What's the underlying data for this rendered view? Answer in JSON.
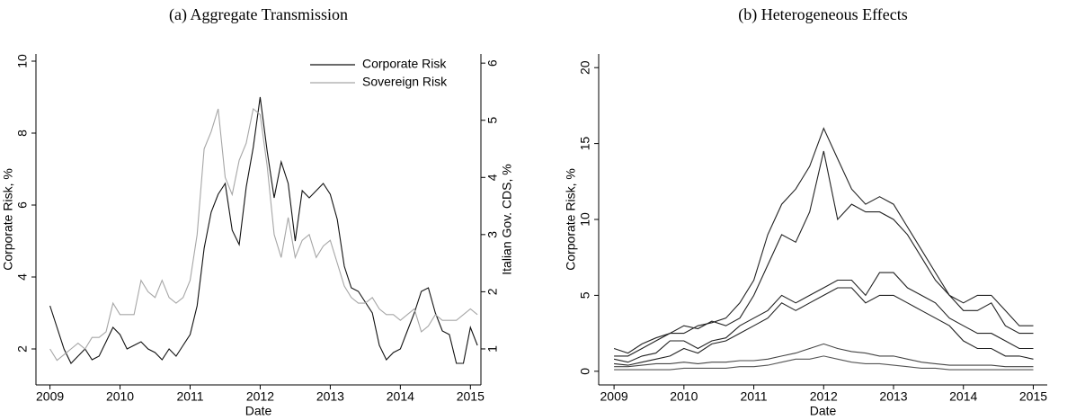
{
  "chart_data": [
    {
      "type": "line",
      "title": "(a) Aggregate Transmission",
      "x_label": "Date",
      "y_label": "Corporate Risk, %",
      "y2_label": "Italian Gov. CDS, %",
      "x": [
        2009.0,
        2009.1,
        2009.2,
        2009.3,
        2009.4,
        2009.5,
        2009.6,
        2009.7,
        2009.8,
        2009.9,
        2010.0,
        2010.1,
        2010.2,
        2010.3,
        2010.4,
        2010.5,
        2010.6,
        2010.7,
        2010.8,
        2010.9,
        2011.0,
        2011.1,
        2011.2,
        2011.3,
        2011.4,
        2011.5,
        2011.6,
        2011.7,
        2011.8,
        2011.9,
        2012.0,
        2012.1,
        2012.2,
        2012.3,
        2012.4,
        2012.5,
        2012.6,
        2012.7,
        2012.8,
        2012.9,
        2013.0,
        2013.1,
        2013.2,
        2013.3,
        2013.4,
        2013.5,
        2013.6,
        2013.7,
        2013.8,
        2013.9,
        2014.0,
        2014.1,
        2014.2,
        2014.3,
        2014.4,
        2014.5,
        2014.6,
        2014.7,
        2014.8,
        2014.9,
        2015.0,
        2015.1
      ],
      "series": [
        {
          "name": "Corporate Risk",
          "color": "#111111",
          "values": [
            3.2,
            2.6,
            2.0,
            1.6,
            1.8,
            2.0,
            1.7,
            1.8,
            2.2,
            2.6,
            2.4,
            2.0,
            2.1,
            2.2,
            2.0,
            1.9,
            1.7,
            2.0,
            1.8,
            2.1,
            2.4,
            3.2,
            4.8,
            5.8,
            6.3,
            6.6,
            5.3,
            4.9,
            6.5,
            7.6,
            9.0,
            7.5,
            6.2,
            7.2,
            6.6,
            5.0,
            6.4,
            6.2,
            6.4,
            6.6,
            6.3,
            5.6,
            4.3,
            3.7,
            3.6,
            3.3,
            3.0,
            2.1,
            1.7,
            1.9,
            2.0,
            2.5,
            3.0,
            3.6,
            3.7,
            3.0,
            2.5,
            2.4,
            1.6,
            1.6,
            2.6,
            2.1
          ]
        },
        {
          "name": "Sovereign Risk",
          "color": "#a6a6a6",
          "axis": "y2",
          "values": [
            1.0,
            0.8,
            0.9,
            1.0,
            1.1,
            1.0,
            1.2,
            1.2,
            1.3,
            1.8,
            1.6,
            1.6,
            1.6,
            2.2,
            2.0,
            1.9,
            2.2,
            1.9,
            1.8,
            1.9,
            2.2,
            3.0,
            4.5,
            4.8,
            5.2,
            4.0,
            3.7,
            4.3,
            4.6,
            5.2,
            5.1,
            4.2,
            3.0,
            2.6,
            3.3,
            2.6,
            2.9,
            3.0,
            2.6,
            2.8,
            2.9,
            2.5,
            2.1,
            1.9,
            1.8,
            1.8,
            1.9,
            1.7,
            1.6,
            1.6,
            1.5,
            1.6,
            1.7,
            1.3,
            1.4,
            1.6,
            1.5,
            1.5,
            1.5,
            1.6,
            1.7,
            1.6
          ]
        }
      ],
      "xlim": [
        2008.8,
        2015.15
      ],
      "xticks": [
        2009,
        2010,
        2011,
        2012,
        2013,
        2014,
        2015
      ],
      "ylim": [
        1.0,
        10.2
      ],
      "yticks": [
        2,
        4,
        6,
        8,
        10
      ],
      "y2lim": [
        0.37,
        6.16
      ],
      "y2ticks": [
        1,
        2,
        3,
        4,
        5,
        6
      ],
      "legend": "upper right"
    },
    {
      "type": "line",
      "title": "(b) Heterogeneous Effects",
      "x_label": "Date",
      "y_label": "Corporate Risk, %",
      "x": [
        2009.0,
        2009.2,
        2009.4,
        2009.6,
        2009.8,
        2010.0,
        2010.2,
        2010.4,
        2010.6,
        2010.8,
        2011.0,
        2011.2,
        2011.4,
        2011.6,
        2011.8,
        2012.0,
        2012.2,
        2012.4,
        2012.6,
        2012.8,
        2013.0,
        2013.2,
        2013.4,
        2013.6,
        2013.8,
        2014.0,
        2014.2,
        2014.4,
        2014.6,
        2014.8,
        2015.0
      ],
      "series": [
        {
          "color": "#222222",
          "values": [
            1.0,
            1.0,
            1.5,
            2.0,
            2.5,
            2.5,
            3.0,
            3.2,
            3.5,
            4.5,
            6.0,
            9.0,
            11.0,
            12.0,
            13.5,
            16.0,
            14.0,
            12.0,
            11.0,
            11.5,
            11.0,
            9.5,
            8.0,
            6.5,
            5.0,
            4.5,
            5.0,
            5.0,
            4.0,
            3.0,
            3.0
          ]
        },
        {
          "color": "#222222",
          "values": [
            1.5,
            1.2,
            1.8,
            2.2,
            2.5,
            3.0,
            2.8,
            3.3,
            3.0,
            3.5,
            5.0,
            7.0,
            9.0,
            8.5,
            10.5,
            14.5,
            10.0,
            11.0,
            10.5,
            10.5,
            10.0,
            9.0,
            7.5,
            6.0,
            5.0,
            4.0,
            4.0,
            4.5,
            3.0,
            2.5,
            2.5
          ]
        },
        {
          "color": "#222222",
          "values": [
            0.8,
            0.6,
            1.0,
            1.2,
            2.0,
            2.0,
            1.5,
            2.0,
            2.2,
            3.0,
            3.5,
            4.0,
            5.0,
            4.5,
            5.0,
            5.5,
            6.0,
            6.0,
            5.0,
            6.5,
            6.5,
            5.5,
            5.0,
            4.5,
            3.5,
            3.0,
            2.5,
            2.5,
            2.0,
            1.5,
            1.5
          ]
        },
        {
          "color": "#222222",
          "values": [
            0.5,
            0.4,
            0.6,
            0.8,
            1.0,
            1.5,
            1.2,
            1.8,
            2.0,
            2.5,
            3.0,
            3.5,
            4.5,
            4.0,
            4.5,
            5.0,
            5.5,
            5.5,
            4.5,
            5.0,
            5.0,
            4.5,
            4.0,
            3.5,
            3.0,
            2.0,
            1.5,
            1.5,
            1.0,
            1.0,
            0.8
          ]
        },
        {
          "color": "#444444",
          "values": [
            0.3,
            0.3,
            0.4,
            0.5,
            0.5,
            0.6,
            0.5,
            0.6,
            0.6,
            0.7,
            0.7,
            0.8,
            1.0,
            1.2,
            1.5,
            1.8,
            1.5,
            1.3,
            1.2,
            1.0,
            1.0,
            0.8,
            0.6,
            0.5,
            0.4,
            0.4,
            0.4,
            0.4,
            0.3,
            0.3,
            0.3
          ]
        },
        {
          "color": "#555555",
          "values": [
            0.1,
            0.1,
            0.1,
            0.1,
            0.1,
            0.2,
            0.2,
            0.2,
            0.2,
            0.3,
            0.3,
            0.4,
            0.6,
            0.8,
            0.8,
            1.0,
            0.8,
            0.6,
            0.5,
            0.5,
            0.4,
            0.3,
            0.2,
            0.2,
            0.1,
            0.1,
            0.1,
            0.1,
            0.1,
            0.1,
            0.1
          ]
        }
      ],
      "xlim": [
        2008.78,
        2015.2
      ],
      "xticks": [
        2009,
        2010,
        2011,
        2012,
        2013,
        2014,
        2015
      ],
      "ylim": [
        -0.9,
        20.9
      ],
      "yticks": [
        0,
        5,
        10,
        15,
        20
      ]
    }
  ]
}
